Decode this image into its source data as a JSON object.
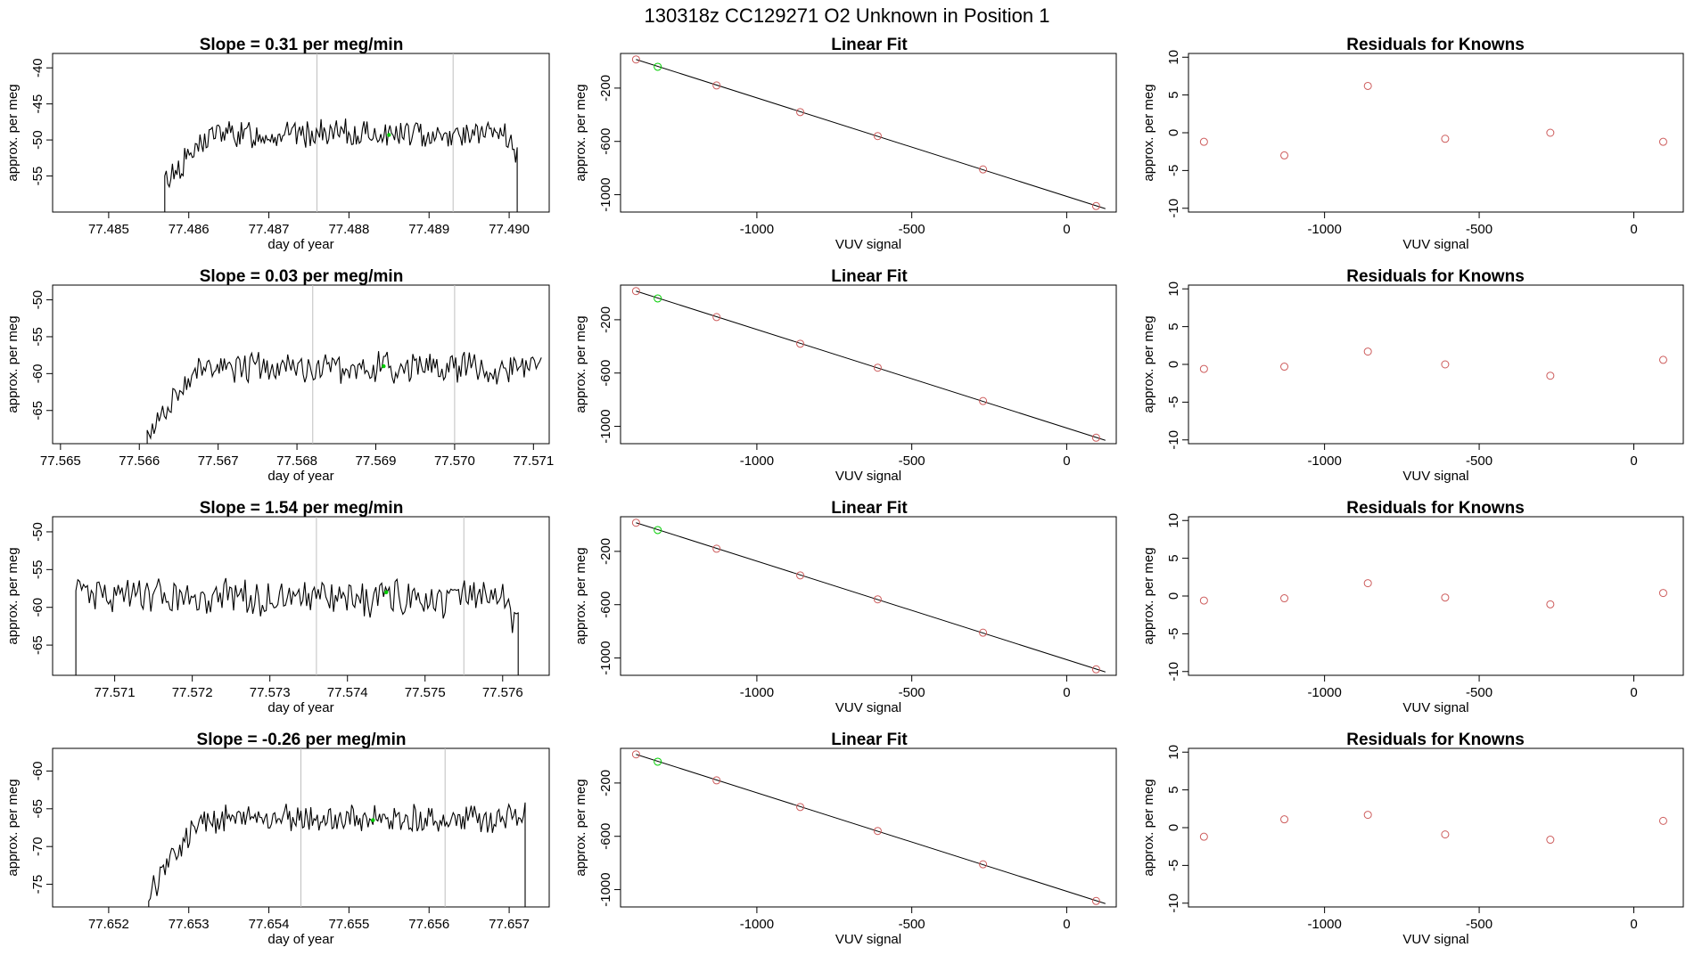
{
  "page_title": "130318z      CC129271   O2 Unknown in Position  1",
  "colors": {
    "trace": "#000000",
    "vline": "#bfbfbf",
    "known": "#cd5c5c",
    "unknown": "#00cd00",
    "fit": "#000000"
  },
  "rows": [
    {
      "slope_title": "Slope =  0.31  per meg/min",
      "fit_title": "Linear Fit",
      "resid_title": "Residuals for Knowns"
    },
    {
      "slope_title": "Slope =  0.03  per meg/min",
      "fit_title": "Linear Fit",
      "resid_title": "Residuals for Knowns"
    },
    {
      "slope_title": "Slope =  1.54  per meg/min",
      "fit_title": "Linear Fit",
      "resid_title": "Residuals for Knowns"
    },
    {
      "slope_title": "Slope =  -0.26  per meg/min",
      "fit_title": "Linear Fit",
      "resid_title": "Residuals for Knowns"
    }
  ],
  "chart_data": [
    {
      "type": "line",
      "panel": "row1-timeseries",
      "title": "Slope =  0.31  per meg/min",
      "xlabel": "day of year",
      "ylabel": "approx. per meg",
      "xlim": [
        77.4843,
        77.4905
      ],
      "ylim": [
        -60,
        -38
      ],
      "xticks": [
        "77.485",
        "77.486",
        "77.487",
        "77.488",
        "77.489",
        "77.490"
      ],
      "yticks": [
        "-55",
        "-50",
        "-45",
        "-40"
      ],
      "trace_start": 77.4857,
      "trace_end": 77.4901,
      "plateau_mean": -49.2,
      "plateau_amplitude": 1.6,
      "start_level": -55.8,
      "end_level": -52.6,
      "vlines": [
        77.4876,
        77.4893
      ],
      "unknown_point": {
        "x": 77.4885,
        "y": -49.3
      }
    },
    {
      "type": "line",
      "panel": "row2-timeseries",
      "title": "Slope =  0.03  per meg/min",
      "xlabel": "day of year",
      "ylabel": "approx. per meg",
      "xlim": [
        77.5649,
        77.5712
      ],
      "ylim": [
        -69.5,
        -48
      ],
      "xticks": [
        "77.565",
        "77.566",
        "77.567",
        "77.568",
        "77.569",
        "77.570",
        "77.571"
      ],
      "yticks": [
        "-65",
        "-60",
        "-55",
        "-50"
      ],
      "trace_start": 77.5661,
      "trace_end": 77.5711,
      "plateau_mean": -59.2,
      "plateau_amplitude": 1.8,
      "start_level": -68.5,
      "end_level": -59.5,
      "vlines": [
        77.5682,
        77.57
      ],
      "unknown_point": {
        "x": 77.5691,
        "y": -59.0
      }
    },
    {
      "type": "line",
      "panel": "row3-timeseries",
      "title": "Slope =  1.54  per meg/min",
      "xlabel": "day of year",
      "ylabel": "approx. per meg",
      "xlim": [
        77.5702,
        77.5766
      ],
      "ylim": [
        -69,
        -48
      ],
      "xticks": [
        "77.571",
        "77.572",
        "77.573",
        "77.574",
        "77.575",
        "77.576"
      ],
      "yticks": [
        "-65",
        "-60",
        "-55",
        "-50"
      ],
      "trace_start": 77.5705,
      "trace_end": 77.5762,
      "plateau_mean": -58.8,
      "plateau_amplitude": 2.0,
      "start_level": -57.0,
      "end_level": -62.5,
      "vlines": [
        77.5736,
        77.5755
      ],
      "unknown_point": {
        "x": 77.5745,
        "y": -58.0
      }
    },
    {
      "type": "line",
      "panel": "row4-timeseries",
      "title": "Slope =  -0.26  per meg/min",
      "xlabel": "day of year",
      "ylabel": "approx. per meg",
      "xlim": [
        77.6513,
        77.6575
      ],
      "ylim": [
        -78,
        -57
      ],
      "xticks": [
        "77.652",
        "77.653",
        "77.654",
        "77.655",
        "77.656",
        "77.657"
      ],
      "yticks": [
        "-75",
        "-70",
        "-65",
        "-60"
      ],
      "trace_start": 77.6525,
      "trace_end": 77.6572,
      "plateau_mean": -66.3,
      "plateau_amplitude": 1.6,
      "start_level": -76.5,
      "end_level": -65.5,
      "vlines": [
        77.6544,
        77.6562
      ],
      "unknown_point": {
        "x": 77.6553,
        "y": -66.5
      }
    },
    {
      "type": "scatter",
      "panel": "linear-fit",
      "title": "Linear Fit",
      "xlabel": "VUV signal",
      "ylabel": "approx. per meg",
      "xlim": [
        -1440,
        160
      ],
      "ylim": [
        -1130,
        60
      ],
      "xticks": [
        "-1000",
        "-500",
        "0"
      ],
      "yticks": [
        "-200",
        "-600",
        "-1000"
      ],
      "fit_line": [
        [
          -1390,
          15
        ],
        [
          125,
          -1105
        ]
      ],
      "knowns": [
        [
          -1390,
          15
        ],
        [
          -1130,
          -180
        ],
        [
          -860,
          -380
        ],
        [
          -610,
          -560
        ],
        [
          -270,
          -810
        ],
        [
          95,
          -1085
        ]
      ],
      "unknown": [
        -1320,
        -40
      ]
    },
    {
      "type": "scatter",
      "panel": "row1-residuals",
      "title": "Residuals for Knowns",
      "xlabel": "VUV signal",
      "ylabel": "approx. per meg",
      "xlim": [
        -1440,
        160
      ],
      "ylim": [
        -10.5,
        10.5
      ],
      "xticks": [
        "-1000",
        "-500",
        "0"
      ],
      "yticks": [
        "-10",
        "-5",
        "0",
        "5",
        "10"
      ],
      "x": [
        -1390,
        -1130,
        -860,
        -610,
        -270,
        95
      ],
      "residuals": [
        -1.2,
        -3.0,
        6.2,
        -0.8,
        0.0,
        -1.2
      ]
    },
    {
      "type": "scatter",
      "panel": "row2-residuals",
      "title": "Residuals for Knowns",
      "xlabel": "VUV signal",
      "ylabel": "approx. per meg",
      "xlim": [
        -1440,
        160
      ],
      "ylim": [
        -10.5,
        10.5
      ],
      "xticks": [
        "-1000",
        "-500",
        "0"
      ],
      "yticks": [
        "-10",
        "-5",
        "0",
        "5",
        "10"
      ],
      "x": [
        -1390,
        -1130,
        -860,
        -610,
        -270,
        95
      ],
      "residuals": [
        -0.6,
        -0.3,
        1.7,
        0.0,
        -1.5,
        0.6
      ]
    },
    {
      "type": "scatter",
      "panel": "row3-residuals",
      "title": "Residuals for Knowns",
      "xlabel": "VUV signal",
      "ylabel": "approx. per meg",
      "xlim": [
        -1440,
        160
      ],
      "ylim": [
        -10.5,
        10.5
      ],
      "xticks": [
        "-1000",
        "-500",
        "0"
      ],
      "yticks": [
        "-10",
        "-5",
        "0",
        "5",
        "10"
      ],
      "x": [
        -1390,
        -1130,
        -860,
        -610,
        -270,
        95
      ],
      "residuals": [
        -0.6,
        -0.3,
        1.7,
        -0.2,
        -1.1,
        0.4
      ]
    },
    {
      "type": "scatter",
      "panel": "row4-residuals",
      "title": "Residuals for Knowns",
      "xlabel": "VUV signal",
      "ylabel": "approx. per meg",
      "xlim": [
        -1440,
        160
      ],
      "ylim": [
        -10.5,
        10.5
      ],
      "xticks": [
        "-1000",
        "-500",
        "0"
      ],
      "yticks": [
        "-10",
        "-5",
        "0",
        "5",
        "10"
      ],
      "x": [
        -1390,
        -1130,
        -860,
        -610,
        -270,
        95
      ],
      "residuals": [
        -1.2,
        1.1,
        1.7,
        -0.9,
        -1.6,
        0.9
      ]
    }
  ]
}
